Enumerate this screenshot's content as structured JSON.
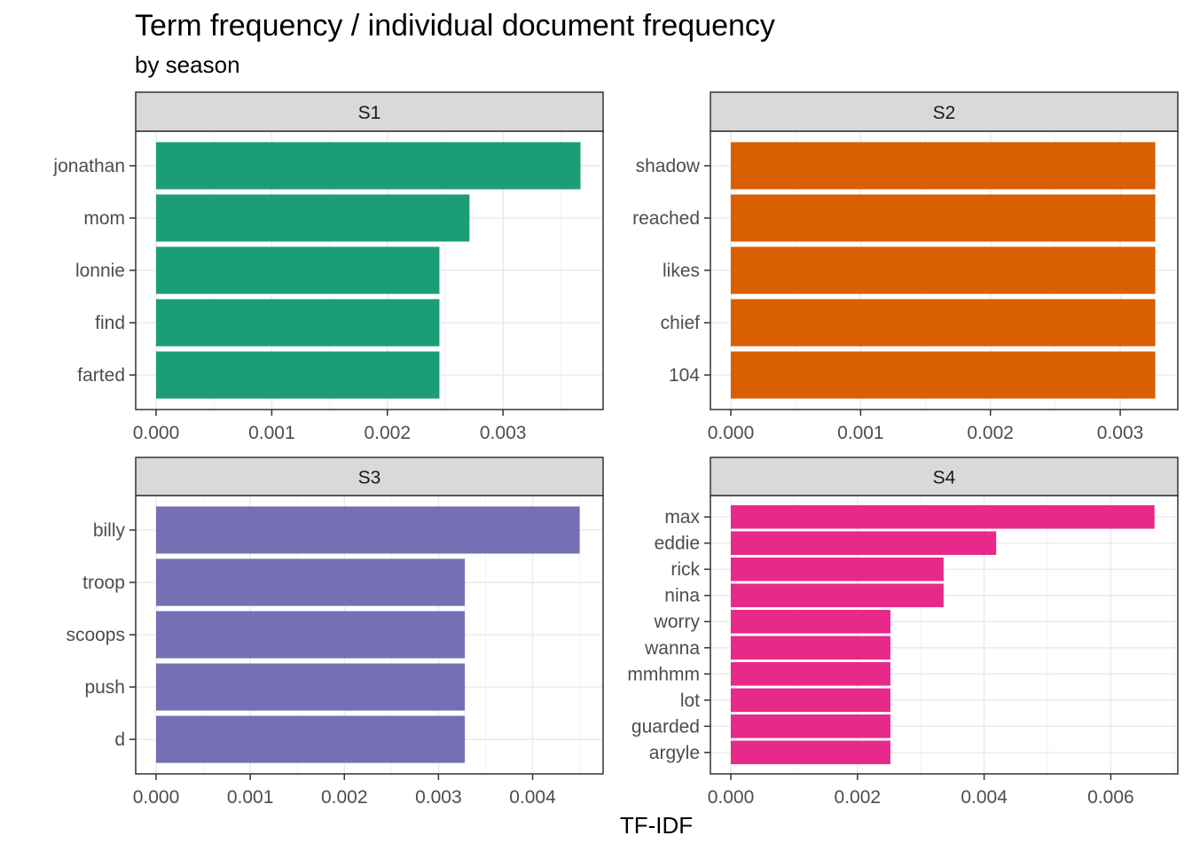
{
  "title": "Term frequency / individual document frequency",
  "subtitle": "by season",
  "xlabel": "TF-IDF",
  "colors": {
    "S1": "#1b9e77",
    "S2": "#d95f02",
    "S3": "#7570b3",
    "S4": "#e7298a",
    "strip_fill": "#d9d9d9",
    "grid": "#ebebeb"
  },
  "chart_data": [
    {
      "type": "bar",
      "orientation": "horizontal",
      "panel": "S1",
      "categories": [
        "jonathan",
        "mom",
        "lonnie",
        "find",
        "farted"
      ],
      "values": [
        0.00367,
        0.00271,
        0.00245,
        0.00245,
        0.00245
      ],
      "xlim": [
        0,
        0.00385
      ],
      "xticks": [
        0.0,
        0.001,
        0.002,
        0.003
      ],
      "xtick_labels": [
        "0.000",
        "0.001",
        "0.002",
        "0.003"
      ]
    },
    {
      "type": "bar",
      "orientation": "horizontal",
      "panel": "S2",
      "categories": [
        "shadow",
        "reached",
        "likes",
        "chief",
        "104"
      ],
      "values": [
        0.00327,
        0.00327,
        0.00327,
        0.00327,
        0.00327
      ],
      "xlim": [
        0,
        0.00343
      ],
      "xticks": [
        0.0,
        0.001,
        0.002,
        0.003
      ],
      "xtick_labels": [
        "0.000",
        "0.001",
        "0.002",
        "0.003"
      ]
    },
    {
      "type": "bar",
      "orientation": "horizontal",
      "panel": "S3",
      "categories": [
        "billy",
        "troop",
        "scoops",
        "push",
        "d"
      ],
      "values": [
        0.0045,
        0.00328,
        0.00328,
        0.00328,
        0.00328
      ],
      "xlim": [
        0,
        0.00473
      ],
      "xticks": [
        0.0,
        0.001,
        0.002,
        0.003,
        0.004
      ],
      "xtick_labels": [
        "0.000",
        "0.001",
        "0.002",
        "0.003",
        "0.004"
      ]
    },
    {
      "type": "bar",
      "orientation": "horizontal",
      "panel": "S4",
      "categories": [
        "max",
        "eddie",
        "rick",
        "nina",
        "worry",
        "wanna",
        "mmhmm",
        "lot",
        "guarded",
        "argyle"
      ],
      "values": [
        0.00669,
        0.00419,
        0.00336,
        0.00336,
        0.00252,
        0.00252,
        0.00252,
        0.00252,
        0.00252,
        0.00252
      ],
      "xlim": [
        0,
        0.00703
      ],
      "xticks": [
        0.0,
        0.002,
        0.004,
        0.006
      ],
      "xtick_labels": [
        "0.000",
        "0.002",
        "0.004",
        "0.006"
      ]
    }
  ]
}
